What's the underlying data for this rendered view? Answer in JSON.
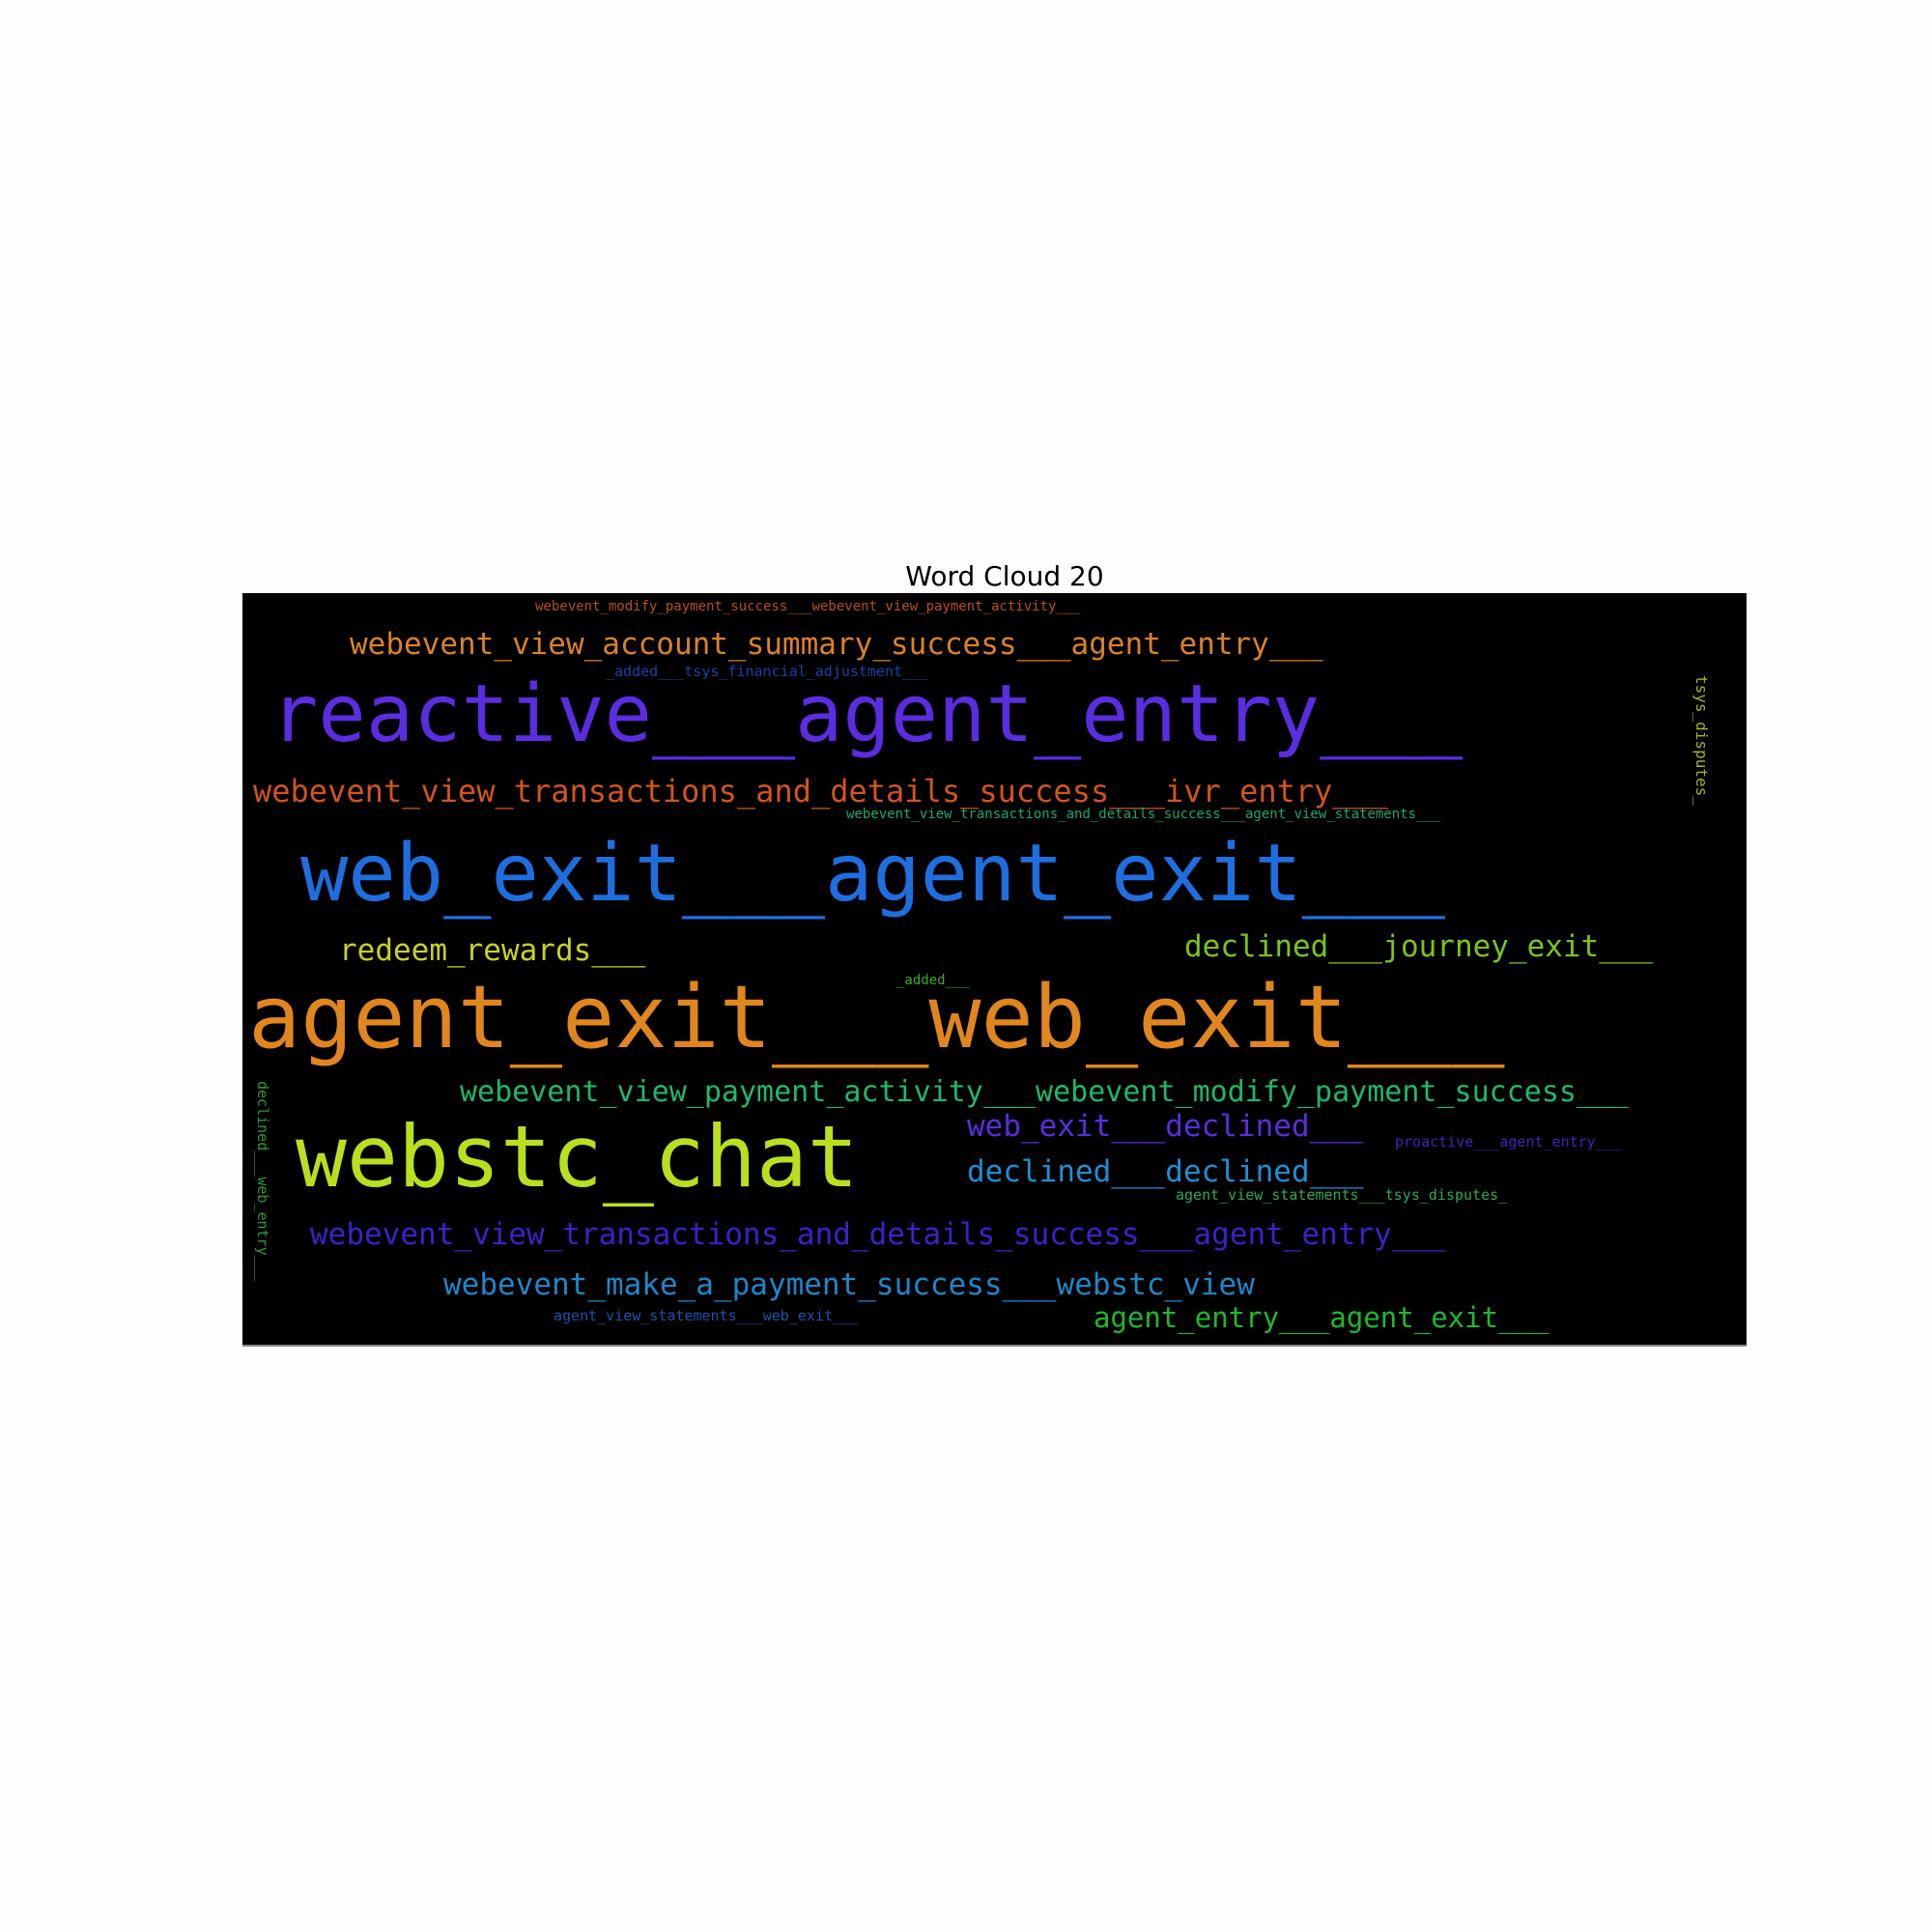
{
  "title": "Word Cloud 20",
  "words": [
    {
      "text": "webevent_modify_payment_success___webevent_view_payment_activity___",
      "color": "#b8501f"
    },
    {
      "text": "webevent_view_account_summary_success___agent_entry___",
      "color": "#d9822b"
    },
    {
      "text": "_added___tsys_financial_adjustment___",
      "color": "#1a3fa8"
    },
    {
      "text": "reactive___agent_entry___",
      "color": "#5a2de0"
    },
    {
      "text": "webevent_view_transactions_and_details_success___ivr_entry___",
      "color": "#d2541e"
    },
    {
      "text": "webevent_view_transactions_and_details_success___agent_view_statements___",
      "color": "#1aa86a"
    },
    {
      "text": "tsys_disputes_",
      "color": "#a3b81f"
    },
    {
      "text": "web_exit___agent_exit___",
      "color": "#1f6ee0"
    },
    {
      "text": "redeem_rewards___",
      "color": "#c8d21f"
    },
    {
      "text": "declined___journey_exit___",
      "color": "#7cc21f"
    },
    {
      "text": "_added___",
      "color": "#3aa82f"
    },
    {
      "text": "agent_exit___web_exit___",
      "color": "#e0861f"
    },
    {
      "text": "webevent_view_payment_activity___webevent_modify_payment_success___",
      "color": "#1fb86a"
    },
    {
      "text": "web_exit___declined___",
      "color": "#5a2de0"
    },
    {
      "text": "proactive___agent_entry___",
      "color": "#3a26b8"
    },
    {
      "text": "webstc_chat",
      "color": "#b8e01f"
    },
    {
      "text": "declined___declined___",
      "color": "#1f8ed2"
    },
    {
      "text": "agent_view_statements___tsys_disputes_",
      "color": "#2fa85a"
    },
    {
      "text": "declined___web_entry___",
      "color": "#2f9a3a"
    },
    {
      "text": "webevent_view_transactions_and_details_success___agent_entry___",
      "color": "#3a22c8"
    },
    {
      "text": "webevent_make_a_payment_success___webstc_view",
      "color": "#1f86c8"
    },
    {
      "text": "agent_view_statements___web_exit___",
      "color": "#1f52a8"
    },
    {
      "text": "agent_entry___agent_exit___",
      "color": "#1fb82f"
    }
  ]
}
